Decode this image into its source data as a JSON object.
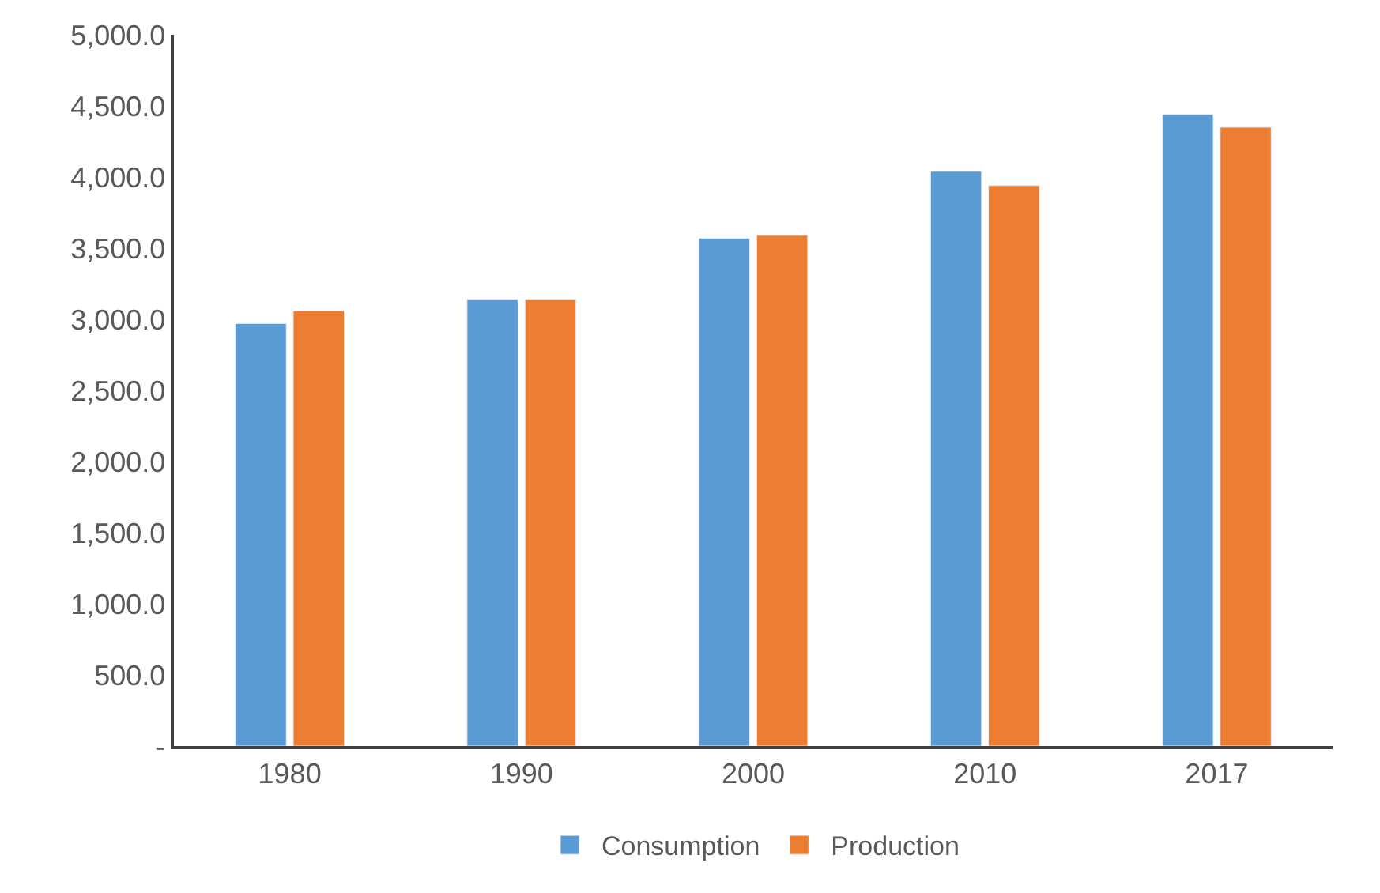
{
  "chart_data": {
    "type": "bar",
    "categories": [
      "1980",
      "1990",
      "2000",
      "2010",
      "2017"
    ],
    "series": [
      {
        "name": "Consumption",
        "color": "#5b9bd5",
        "values": [
          2970,
          3140,
          3570,
          4040,
          4440
        ]
      },
      {
        "name": "Production",
        "color": "#ed7d31",
        "values": [
          3060,
          3140,
          3590,
          3940,
          4350
        ]
      }
    ],
    "ylim": [
      0,
      5000
    ],
    "yticks": [
      {
        "value": 0,
        "label": "-"
      },
      {
        "value": 500,
        "label": "500.0"
      },
      {
        "value": 1000,
        "label": "1,000.0"
      },
      {
        "value": 1500,
        "label": "1,500.0"
      },
      {
        "value": 2000,
        "label": "2,000.0"
      },
      {
        "value": 2500,
        "label": "2,500.0"
      },
      {
        "value": 3000,
        "label": "3,000.0"
      },
      {
        "value": 3500,
        "label": "3,500.0"
      },
      {
        "value": 4000,
        "label": "4,000.0"
      },
      {
        "value": 4500,
        "label": "4,500.0"
      },
      {
        "value": 5000,
        "label": "5,000.0"
      }
    ],
    "legend": "bottom"
  }
}
